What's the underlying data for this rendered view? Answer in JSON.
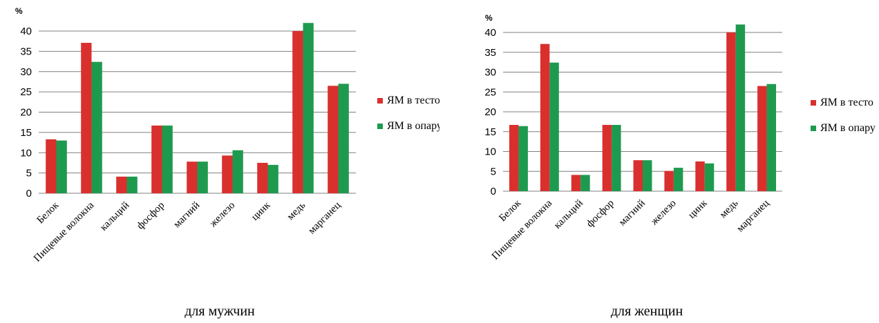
{
  "colors": {
    "series1": "#d9302e",
    "series2": "#1e9a4f",
    "axis": "#7f7f7f"
  },
  "chart_data": [
    {
      "type": "bar",
      "caption": "для мужчин",
      "ylabel": "%",
      "ylim": [
        0,
        40
      ],
      "yticks": [
        0,
        5,
        10,
        15,
        20,
        25,
        30,
        35,
        40
      ],
      "grid": true,
      "legend_position": "right",
      "categories": [
        "Белок",
        "Пищевые волокна",
        "кальций",
        "фосфор",
        "магний",
        "железо",
        "цинк",
        "медь",
        "марганец"
      ],
      "series": [
        {
          "name": "ЯМ в тесто",
          "values": [
            13.3,
            37.1,
            4.1,
            16.7,
            7.8,
            9.3,
            7.5,
            40.0,
            26.5
          ]
        },
        {
          "name": "ЯМ в опару",
          "values": [
            13.0,
            32.4,
            4.1,
            16.7,
            7.8,
            10.6,
            7.0,
            42.0,
            27.0
          ]
        }
      ]
    },
    {
      "type": "bar",
      "caption": "для женщин",
      "ylabel": "%",
      "ylim": [
        0,
        40
      ],
      "yticks": [
        0,
        5,
        10,
        15,
        20,
        25,
        30,
        35,
        40
      ],
      "grid": true,
      "legend_position": "right",
      "categories": [
        "Белок",
        "Пищевые волокна",
        "кальций",
        "фосфор",
        "магний",
        "железо",
        "цинк",
        "медь",
        "марганец"
      ],
      "series": [
        {
          "name": "ЯМ в тесто",
          "values": [
            16.7,
            37.1,
            4.1,
            16.7,
            7.8,
            5.1,
            7.5,
            40.0,
            26.5
          ]
        },
        {
          "name": "ЯМ в опару",
          "values": [
            16.4,
            32.4,
            4.1,
            16.7,
            7.8,
            5.9,
            7.0,
            42.0,
            27.0
          ]
        }
      ]
    }
  ]
}
